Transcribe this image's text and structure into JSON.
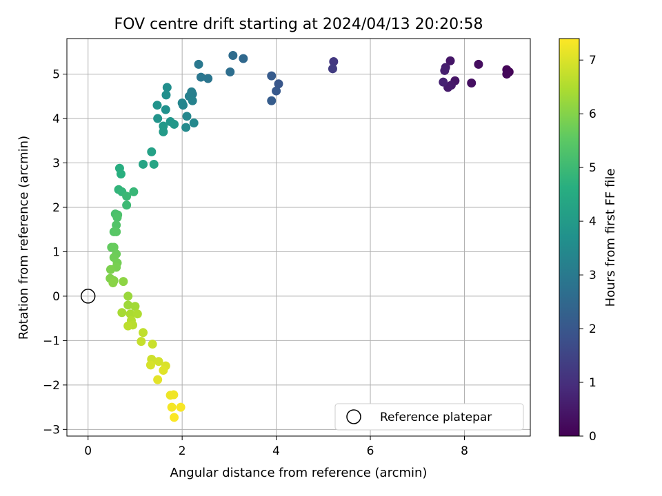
{
  "chart_data": {
    "type": "scatter",
    "title": "FOV centre drift starting at 2024/04/13 20:20:58",
    "xlabel": "Angular distance from reference (arcmin)",
    "ylabel": "Rotation from reference (arcmin)",
    "xlim": [
      -0.45,
      9.4
    ],
    "ylim": [
      -3.15,
      5.8
    ],
    "xticks": [
      0,
      2,
      4,
      6,
      8
    ],
    "yticks": [
      -3,
      -2,
      -1,
      0,
      1,
      2,
      3,
      4,
      5
    ],
    "grid": true,
    "legend": {
      "position": "lower-right",
      "entries": [
        "Reference platepar"
      ]
    },
    "reference_point": {
      "x": 0,
      "y": 0,
      "name": "Reference platepar"
    },
    "colorbar": {
      "label": "Hours from first FF file",
      "min": 0,
      "max": 7.4,
      "ticks": [
        0,
        1,
        2,
        3,
        4,
        5,
        6,
        7
      ],
      "colormap": "viridis"
    },
    "points": [
      {
        "x": 8.95,
        "y": 5.05,
        "h": 0.05
      },
      {
        "x": 8.9,
        "y": 5.1,
        "h": 0.1
      },
      {
        "x": 8.9,
        "y": 5.0,
        "h": 0.15
      },
      {
        "x": 8.3,
        "y": 5.22,
        "h": 0.25
      },
      {
        "x": 8.15,
        "y": 4.8,
        "h": 0.3
      },
      {
        "x": 7.8,
        "y": 4.85,
        "h": 0.4
      },
      {
        "x": 7.7,
        "y": 5.3,
        "h": 0.45
      },
      {
        "x": 7.72,
        "y": 4.75,
        "h": 0.5
      },
      {
        "x": 7.65,
        "y": 4.7,
        "h": 0.55
      },
      {
        "x": 7.6,
        "y": 5.15,
        "h": 0.6
      },
      {
        "x": 7.58,
        "y": 5.08,
        "h": 0.65
      },
      {
        "x": 7.55,
        "y": 4.82,
        "h": 0.7
      },
      {
        "x": 5.22,
        "y": 5.28,
        "h": 1.2
      },
      {
        "x": 5.2,
        "y": 5.12,
        "h": 1.3
      },
      {
        "x": 4.05,
        "y": 4.78,
        "h": 2.0
      },
      {
        "x": 4.0,
        "y": 4.62,
        "h": 2.05
      },
      {
        "x": 3.9,
        "y": 4.96,
        "h": 2.1
      },
      {
        "x": 3.9,
        "y": 4.4,
        "h": 2.15
      },
      {
        "x": 3.3,
        "y": 5.35,
        "h": 2.5
      },
      {
        "x": 3.08,
        "y": 5.42,
        "h": 2.6
      },
      {
        "x": 3.02,
        "y": 5.05,
        "h": 2.65
      },
      {
        "x": 2.55,
        "y": 4.9,
        "h": 2.85
      },
      {
        "x": 2.4,
        "y": 4.93,
        "h": 2.9
      },
      {
        "x": 2.35,
        "y": 5.22,
        "h": 2.95
      },
      {
        "x": 2.22,
        "y": 4.55,
        "h": 3.1
      },
      {
        "x": 2.2,
        "y": 4.6,
        "h": 3.15
      },
      {
        "x": 2.15,
        "y": 4.5,
        "h": 3.2
      },
      {
        "x": 2.22,
        "y": 4.4,
        "h": 3.25
      },
      {
        "x": 2.02,
        "y": 4.3,
        "h": 3.3
      },
      {
        "x": 2.0,
        "y": 4.35,
        "h": 3.35
      },
      {
        "x": 2.1,
        "y": 4.05,
        "h": 3.4
      },
      {
        "x": 2.25,
        "y": 3.9,
        "h": 3.45
      },
      {
        "x": 2.08,
        "y": 3.8,
        "h": 3.5
      },
      {
        "x": 1.68,
        "y": 4.7,
        "h": 3.6
      },
      {
        "x": 1.66,
        "y": 4.53,
        "h": 3.65
      },
      {
        "x": 1.65,
        "y": 4.2,
        "h": 3.7
      },
      {
        "x": 1.47,
        "y": 4.3,
        "h": 3.75
      },
      {
        "x": 1.48,
        "y": 4.0,
        "h": 3.8
      },
      {
        "x": 1.75,
        "y": 3.93,
        "h": 3.85
      },
      {
        "x": 1.83,
        "y": 3.87,
        "h": 3.9
      },
      {
        "x": 1.6,
        "y": 3.83,
        "h": 3.95
      },
      {
        "x": 1.6,
        "y": 3.7,
        "h": 4.0
      },
      {
        "x": 1.35,
        "y": 3.25,
        "h": 4.2
      },
      {
        "x": 1.17,
        "y": 2.97,
        "h": 4.3
      },
      {
        "x": 1.4,
        "y": 2.97,
        "h": 4.35
      },
      {
        "x": 0.67,
        "y": 2.88,
        "h": 4.6
      },
      {
        "x": 0.7,
        "y": 2.75,
        "h": 4.65
      },
      {
        "x": 0.65,
        "y": 2.4,
        "h": 4.8
      },
      {
        "x": 0.72,
        "y": 2.35,
        "h": 4.85
      },
      {
        "x": 0.97,
        "y": 2.35,
        "h": 4.9
      },
      {
        "x": 0.82,
        "y": 2.25,
        "h": 4.95
      },
      {
        "x": 0.82,
        "y": 2.05,
        "h": 5.0
      },
      {
        "x": 0.58,
        "y": 1.85,
        "h": 5.2
      },
      {
        "x": 0.63,
        "y": 1.83,
        "h": 5.25
      },
      {
        "x": 0.62,
        "y": 1.77,
        "h": 5.3
      },
      {
        "x": 0.6,
        "y": 1.6,
        "h": 5.35
      },
      {
        "x": 0.55,
        "y": 1.45,
        "h": 5.4
      },
      {
        "x": 0.6,
        "y": 1.45,
        "h": 5.45
      },
      {
        "x": 0.5,
        "y": 1.1,
        "h": 5.6
      },
      {
        "x": 0.55,
        "y": 1.1,
        "h": 5.65
      },
      {
        "x": 0.6,
        "y": 0.95,
        "h": 5.7
      },
      {
        "x": 0.55,
        "y": 0.87,
        "h": 5.75
      },
      {
        "x": 0.62,
        "y": 0.75,
        "h": 5.8
      },
      {
        "x": 0.6,
        "y": 0.65,
        "h": 5.85
      },
      {
        "x": 0.48,
        "y": 0.6,
        "h": 5.9
      },
      {
        "x": 0.47,
        "y": 0.4,
        "h": 5.95
      },
      {
        "x": 0.55,
        "y": 0.35,
        "h": 6.0
      },
      {
        "x": 0.53,
        "y": 0.3,
        "h": 6.05
      },
      {
        "x": 0.75,
        "y": 0.33,
        "h": 6.1
      },
      {
        "x": 0.85,
        "y": 0.0,
        "h": 6.25
      },
      {
        "x": 0.85,
        "y": -0.2,
        "h": 6.3
      },
      {
        "x": 1.0,
        "y": -0.23,
        "h": 6.35
      },
      {
        "x": 0.72,
        "y": -0.37,
        "h": 6.4
      },
      {
        "x": 0.9,
        "y": -0.4,
        "h": 6.45
      },
      {
        "x": 1.05,
        "y": -0.4,
        "h": 6.5
      },
      {
        "x": 0.92,
        "y": -0.55,
        "h": 6.55
      },
      {
        "x": 0.95,
        "y": -0.65,
        "h": 6.6
      },
      {
        "x": 0.85,
        "y": -0.67,
        "h": 6.65
      },
      {
        "x": 1.17,
        "y": -0.82,
        "h": 6.7
      },
      {
        "x": 1.13,
        "y": -1.02,
        "h": 6.75
      },
      {
        "x": 1.37,
        "y": -1.08,
        "h": 6.8
      },
      {
        "x": 1.35,
        "y": -1.42,
        "h": 6.85
      },
      {
        "x": 1.5,
        "y": -1.47,
        "h": 6.9
      },
      {
        "x": 1.33,
        "y": -1.55,
        "h": 6.95
      },
      {
        "x": 1.65,
        "y": -1.57,
        "h": 7.0
      },
      {
        "x": 1.6,
        "y": -1.67,
        "h": 7.05
      },
      {
        "x": 1.48,
        "y": -1.88,
        "h": 7.1
      },
      {
        "x": 1.75,
        "y": -2.23,
        "h": 7.2
      },
      {
        "x": 1.82,
        "y": -2.22,
        "h": 7.25
      },
      {
        "x": 1.78,
        "y": -2.5,
        "h": 7.3
      },
      {
        "x": 1.97,
        "y": -2.5,
        "h": 7.33
      },
      {
        "x": 1.83,
        "y": -2.73,
        "h": 7.38
      }
    ]
  }
}
